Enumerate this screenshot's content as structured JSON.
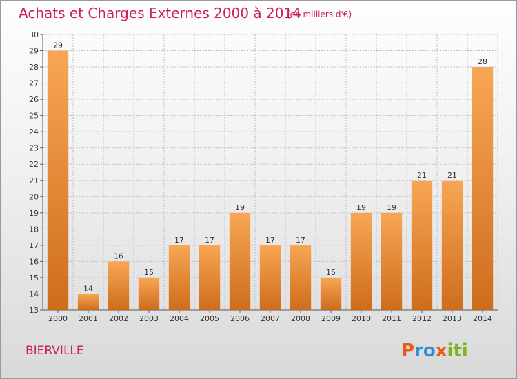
{
  "header": {
    "title": "Achats et Charges Externes 2000 à 2014",
    "subtitle": "(en milliers d'€)"
  },
  "footer": {
    "commune": "BIERVILLE",
    "logo": "Proxiti"
  },
  "colors": {
    "title": "#cc1f4f",
    "bar_light": "#f8a655",
    "bar_dark": "#cd6d1c",
    "grid": "#bdbdbd",
    "logo_letters": [
      "#e85a1c",
      "#2f8fd6",
      "#2f8fd6",
      "#e85a1c",
      "#7ab51d",
      "#7ab51d",
      "#7ab51d"
    ]
  },
  "chart_data": {
    "type": "bar",
    "title": "Achats et Charges Externes 2000 à 2014",
    "subtitle": "(en milliers d'€)",
    "categories": [
      "2000",
      "2001",
      "2002",
      "2003",
      "2004",
      "2005",
      "2006",
      "2007",
      "2008",
      "2009",
      "2010",
      "2011",
      "2012",
      "2013",
      "2014"
    ],
    "values": [
      29,
      14,
      16,
      15,
      17,
      17,
      19,
      17,
      17,
      15,
      19,
      19,
      21,
      21,
      28
    ],
    "ylim": [
      13,
      30
    ],
    "yticks": [
      13,
      14,
      15,
      16,
      17,
      18,
      19,
      20,
      21,
      22,
      23,
      24,
      25,
      26,
      27,
      28,
      29,
      30
    ],
    "grid": true,
    "data_labels": true
  }
}
